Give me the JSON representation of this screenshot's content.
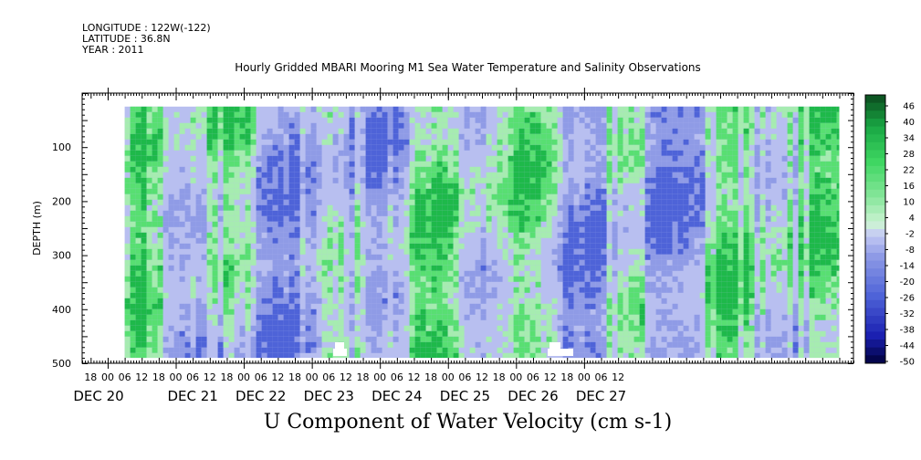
{
  "header": {
    "longitude": "LONGITUDE : 122W(-122)",
    "latitude": "LATITUDE : 36.8N",
    "year": "YEAR : 2011",
    "title": "Hourly Gridded MBARI Mooring M1 Sea Water Temperature and Salinity Observations"
  },
  "chart_data": {
    "type": "heatmap",
    "title": "Hourly Gridded MBARI Mooring M1 Sea Water Temperature and Salinity Observations",
    "xlabel": "U Component of Water Velocity (cm s-1)",
    "ylabel": "DEPTH (m)",
    "x_tick_labels": [
      "18",
      "00",
      "06",
      "12",
      "18",
      "00",
      "06",
      "12",
      "18",
      "00",
      "06",
      "12",
      "18",
      "00",
      "06",
      "12",
      "18",
      "00",
      "06",
      "12",
      "18",
      "00",
      "06",
      "12",
      "18",
      "00",
      "06",
      "12",
      "18",
      "00",
      "06",
      "12"
    ],
    "x_day_labels": [
      "DEC 20",
      "DEC 21",
      "DEC 22",
      "DEC 23",
      "DEC 24",
      "DEC 25",
      "DEC 26",
      "DEC 27"
    ],
    "y_ticks": [
      100,
      200,
      300,
      400,
      500
    ],
    "y_tick_labels": [
      "100",
      "200",
      "300",
      "400",
      "500"
    ],
    "ylim": [
      500,
      0
    ],
    "xlim_hours": [
      -9,
      263
    ],
    "data_start_hour": 6,
    "data_end_hour": 258,
    "data_depth_range": [
      25,
      490
    ],
    "colorbar_labels": [
      "46",
      "40",
      "34",
      "28",
      "22",
      "16",
      "10",
      "4",
      "-2",
      "-8",
      "-14",
      "-20",
      "-26",
      "-32",
      "-38",
      "-44",
      "-50"
    ],
    "colorbar_range": [
      -50,
      52
    ],
    "colors": {
      "negative_light": "#b8bff0",
      "negative_mid": "#8f9be6",
      "negative_dark": "#4e63d8",
      "positive_light": "#a6ecb0",
      "positive_mid": "#58df72",
      "positive_dark": "#1eb94a"
    }
  }
}
